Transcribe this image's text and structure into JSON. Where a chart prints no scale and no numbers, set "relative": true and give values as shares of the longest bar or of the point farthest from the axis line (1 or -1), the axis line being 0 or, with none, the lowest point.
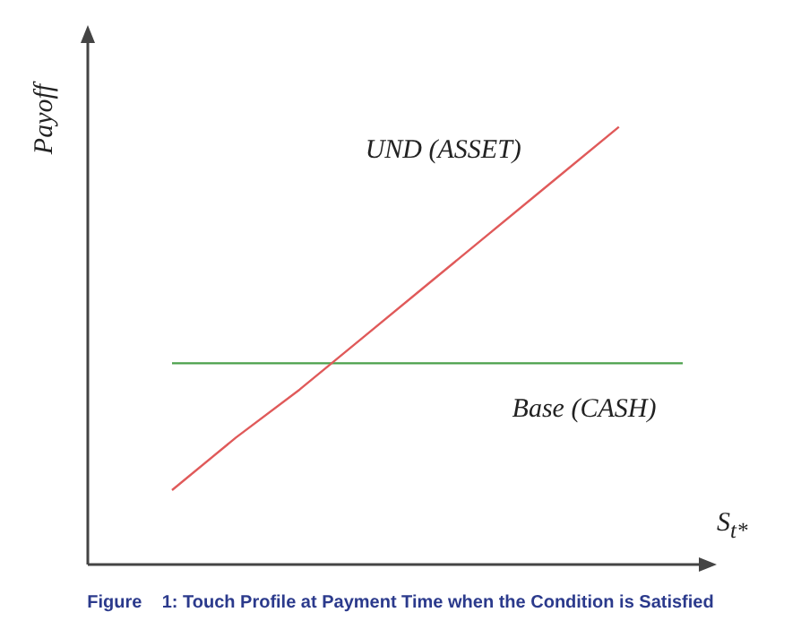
{
  "chart_data": {
    "type": "line",
    "relative": true,
    "xlabel": "S$_{t*}$",
    "ylabel": "Payoff",
    "line_style": "solid",
    "categories": [
      null,
      null,
      null,
      null,
      null,
      null,
      null,
      null,
      null
    ],
    "series": [
      {
        "name": "UND (ASSET)",
        "color": "#e05a5a",
        "values": [
          0.17,
          0.29,
          0.4,
          0.52,
          0.64,
          0.76,
          0.88,
          1,
          null
        ]
      },
      {
        "name": "Base (CASH)",
        "color": "#4aa04a",
        "values": [
          0.46,
          0.46,
          0.46,
          0.46,
          0.46,
          0.46,
          0.46,
          0.46,
          0.46
        ]
      }
    ],
    "annotations": [
      "Figure    1: Touch Profile at Payment Time when the Condition is Satisfied"
    ]
  }
}
